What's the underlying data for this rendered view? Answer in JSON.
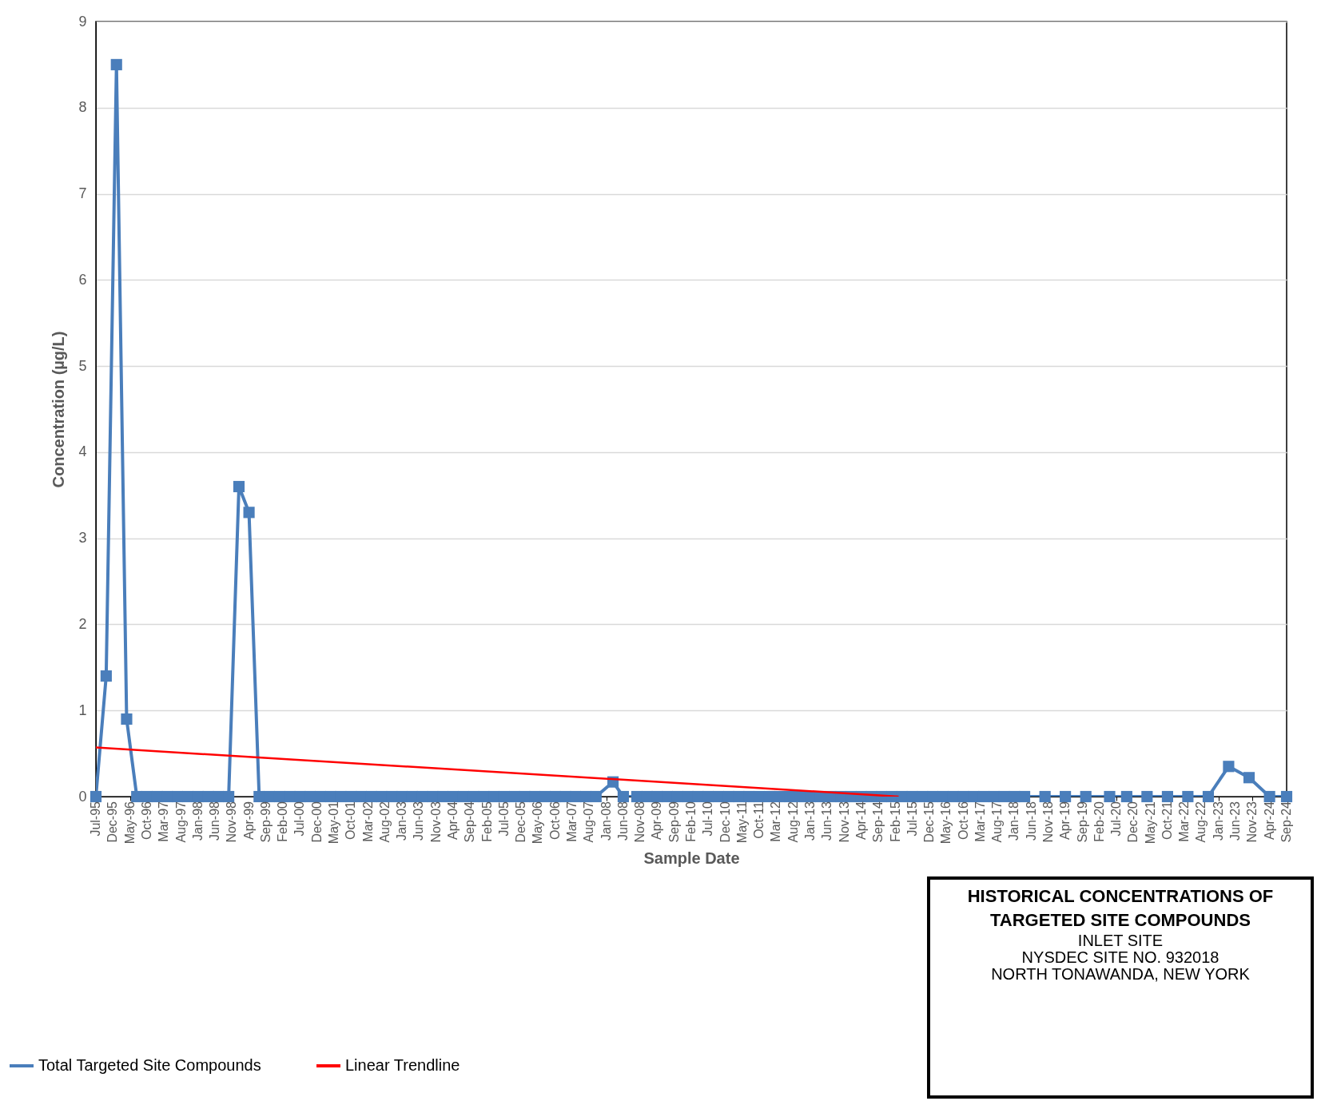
{
  "chart_data": {
    "type": "line",
    "title": "HISTORICAL CONCENTRATIONS OF TARGETED SITE COMPOUNDS",
    "subtitle": "INLET SITE",
    "annotations": [
      "NYSDEC SITE NO. 932018",
      "NORTH TONAWANDA, NEW YORK"
    ],
    "xlabel": "Sample Date",
    "ylabel": "Concentration (µg/L)",
    "ylim": [
      0,
      9
    ],
    "yticks": [
      0,
      1,
      2,
      3,
      4,
      5,
      6,
      7,
      8,
      9
    ],
    "grid": "y",
    "legend": "bottom",
    "marker": "square",
    "xlim": [
      "1995-07",
      "2024-09"
    ],
    "xticks": [
      {
        "value": "1995-07",
        "label": "Jul-95"
      },
      {
        "value": "1995-12",
        "label": "Dec-95"
      },
      {
        "value": "1996-05",
        "label": "May-96"
      },
      {
        "value": "1996-10",
        "label": "Oct-96"
      },
      {
        "value": "1997-03",
        "label": "Mar-97"
      },
      {
        "value": "1997-08",
        "label": "Aug-97"
      },
      {
        "value": "1998-01",
        "label": "Jan-98"
      },
      {
        "value": "1998-06",
        "label": "Jun-98"
      },
      {
        "value": "1998-11",
        "label": "Nov-98"
      },
      {
        "value": "1999-04",
        "label": "Apr-99"
      },
      {
        "value": "1999-09",
        "label": "Sep-99"
      },
      {
        "value": "2000-02",
        "label": "Feb-00"
      },
      {
        "value": "2000-07",
        "label": "Jul-00"
      },
      {
        "value": "2000-12",
        "label": "Dec-00"
      },
      {
        "value": "2001-05",
        "label": "May-01"
      },
      {
        "value": "2001-10",
        "label": "Oct-01"
      },
      {
        "value": "2002-03",
        "label": "Mar-02"
      },
      {
        "value": "2002-08",
        "label": "Aug-02"
      },
      {
        "value": "2003-01",
        "label": "Jan-03"
      },
      {
        "value": "2003-06",
        "label": "Jun-03"
      },
      {
        "value": "2003-11",
        "label": "Nov-03"
      },
      {
        "value": "2004-04",
        "label": "Apr-04"
      },
      {
        "value": "2004-09",
        "label": "Sep-04"
      },
      {
        "value": "2005-02",
        "label": "Feb-05"
      },
      {
        "value": "2005-07",
        "label": "Jul-05"
      },
      {
        "value": "2005-12",
        "label": "Dec-05"
      },
      {
        "value": "2006-05",
        "label": "May-06"
      },
      {
        "value": "2006-10",
        "label": "Oct-06"
      },
      {
        "value": "2007-03",
        "label": "Mar-07"
      },
      {
        "value": "2007-08",
        "label": "Aug-07"
      },
      {
        "value": "2008-01",
        "label": "Jan-08"
      },
      {
        "value": "2008-06",
        "label": "Jun-08"
      },
      {
        "value": "2008-11",
        "label": "Nov-08"
      },
      {
        "value": "2009-04",
        "label": "Apr-09"
      },
      {
        "value": "2009-09",
        "label": "Sep-09"
      },
      {
        "value": "2010-02",
        "label": "Feb-10"
      },
      {
        "value": "2010-07",
        "label": "Jul-10"
      },
      {
        "value": "2010-12",
        "label": "Dec-10"
      },
      {
        "value": "2011-05",
        "label": "May-11"
      },
      {
        "value": "2011-10",
        "label": "Oct-11"
      },
      {
        "value": "2012-03",
        "label": "Mar-12"
      },
      {
        "value": "2012-08",
        "label": "Aug-12"
      },
      {
        "value": "2013-01",
        "label": "Jan-13"
      },
      {
        "value": "2013-06",
        "label": "Jun-13"
      },
      {
        "value": "2013-11",
        "label": "Nov-13"
      },
      {
        "value": "2014-04",
        "label": "Apr-14"
      },
      {
        "value": "2014-09",
        "label": "Sep-14"
      },
      {
        "value": "2015-02",
        "label": "Feb-15"
      },
      {
        "value": "2015-07",
        "label": "Jul-15"
      },
      {
        "value": "2015-12",
        "label": "Dec-15"
      },
      {
        "value": "2016-05",
        "label": "May-16"
      },
      {
        "value": "2016-10",
        "label": "Oct-16"
      },
      {
        "value": "2017-03",
        "label": "Mar-17"
      },
      {
        "value": "2017-08",
        "label": "Aug-17"
      },
      {
        "value": "2018-01",
        "label": "Jan-18"
      },
      {
        "value": "2018-06",
        "label": "Jun-18"
      },
      {
        "value": "2018-11",
        "label": "Nov-18"
      },
      {
        "value": "2019-04",
        "label": "Apr-19"
      },
      {
        "value": "2019-09",
        "label": "Sep-19"
      },
      {
        "value": "2020-02",
        "label": "Feb-20"
      },
      {
        "value": "2020-07",
        "label": "Jul-20"
      },
      {
        "value": "2020-12",
        "label": "Dec-20"
      },
      {
        "value": "2021-05",
        "label": "May-21"
      },
      {
        "value": "2021-10",
        "label": "Oct-21"
      },
      {
        "value": "2022-03",
        "label": "Mar-22"
      },
      {
        "value": "2022-08",
        "label": "Aug-22"
      },
      {
        "value": "2023-01",
        "label": "Jan-23"
      },
      {
        "value": "2023-06",
        "label": "Jun-23"
      },
      {
        "value": "2023-11",
        "label": "Nov-23"
      },
      {
        "value": "2024-04",
        "label": "Apr-24"
      },
      {
        "value": "2024-09",
        "label": "Sep-24"
      }
    ],
    "series": [
      {
        "name": "Total Targeted Site Compounds",
        "color": "#4a7ebb",
        "x": [
          "1995-07",
          "1995-10",
          "1996-01",
          "1996-04",
          "1996-07",
          "1996-10",
          "1997-01",
          "1997-04",
          "1997-07",
          "1997-10",
          "1998-01",
          "1998-04",
          "1998-07",
          "1998-10",
          "1999-01",
          "1999-04",
          "1999-07",
          "1999-10",
          "2000-01",
          "2000-04",
          "2000-07",
          "2000-10",
          "2001-01",
          "2001-04",
          "2001-07",
          "2001-10",
          "2002-01",
          "2002-04",
          "2002-07",
          "2002-10",
          "2003-01",
          "2003-04",
          "2003-07",
          "2003-10",
          "2004-01",
          "2004-04",
          "2004-07",
          "2004-10",
          "2005-01",
          "2005-04",
          "2005-07",
          "2005-10",
          "2006-01",
          "2006-04",
          "2006-07",
          "2006-10",
          "2007-01",
          "2007-04",
          "2007-07",
          "2007-10",
          "2008-03",
          "2008-06",
          "2008-10",
          "2009-01",
          "2009-04",
          "2009-07",
          "2009-10",
          "2010-01",
          "2010-04",
          "2010-07",
          "2010-10",
          "2011-01",
          "2011-04",
          "2011-07",
          "2011-10",
          "2012-01",
          "2012-04",
          "2012-07",
          "2012-10",
          "2013-01",
          "2013-04",
          "2013-07",
          "2013-10",
          "2014-01",
          "2014-04",
          "2014-07",
          "2014-10",
          "2015-01",
          "2015-04",
          "2015-07",
          "2015-10",
          "2016-01",
          "2016-04",
          "2016-07",
          "2016-10",
          "2017-01",
          "2017-04",
          "2017-07",
          "2017-10",
          "2018-01",
          "2018-04",
          "2018-10",
          "2019-04",
          "2019-10",
          "2020-05",
          "2020-10",
          "2021-04",
          "2021-10",
          "2022-04",
          "2022-10",
          "2023-04",
          "2023-10",
          "2024-04",
          "2024-09"
        ],
        "values": [
          0,
          1.4,
          8.5,
          0.9,
          0,
          0,
          0,
          0,
          0,
          0,
          0,
          0,
          0,
          0,
          3.6,
          3.3,
          0,
          0,
          0,
          0,
          0,
          0,
          0,
          0,
          0,
          0,
          0,
          0,
          0,
          0,
          0,
          0,
          0,
          0,
          0,
          0,
          0,
          0,
          0,
          0,
          0,
          0,
          0,
          0,
          0,
          0,
          0,
          0,
          0,
          0,
          0.17,
          0,
          0,
          0,
          0,
          0,
          0,
          0,
          0,
          0,
          0,
          0,
          0,
          0,
          0,
          0,
          0,
          0,
          0,
          0,
          0,
          0,
          0,
          0,
          0,
          0,
          0,
          0,
          0,
          0,
          0,
          0,
          0,
          0,
          0,
          0,
          0,
          0,
          0,
          0,
          0,
          0,
          0,
          0,
          0,
          0,
          0,
          0,
          0,
          0,
          0.35,
          0.22,
          0,
          0
        ]
      },
      {
        "name": "Linear Trendline",
        "color": "#ff0000",
        "type": "line",
        "marker": "none",
        "x": [
          "1995-07",
          "2015-03"
        ],
        "values": [
          0.57,
          0
        ]
      }
    ]
  }
}
